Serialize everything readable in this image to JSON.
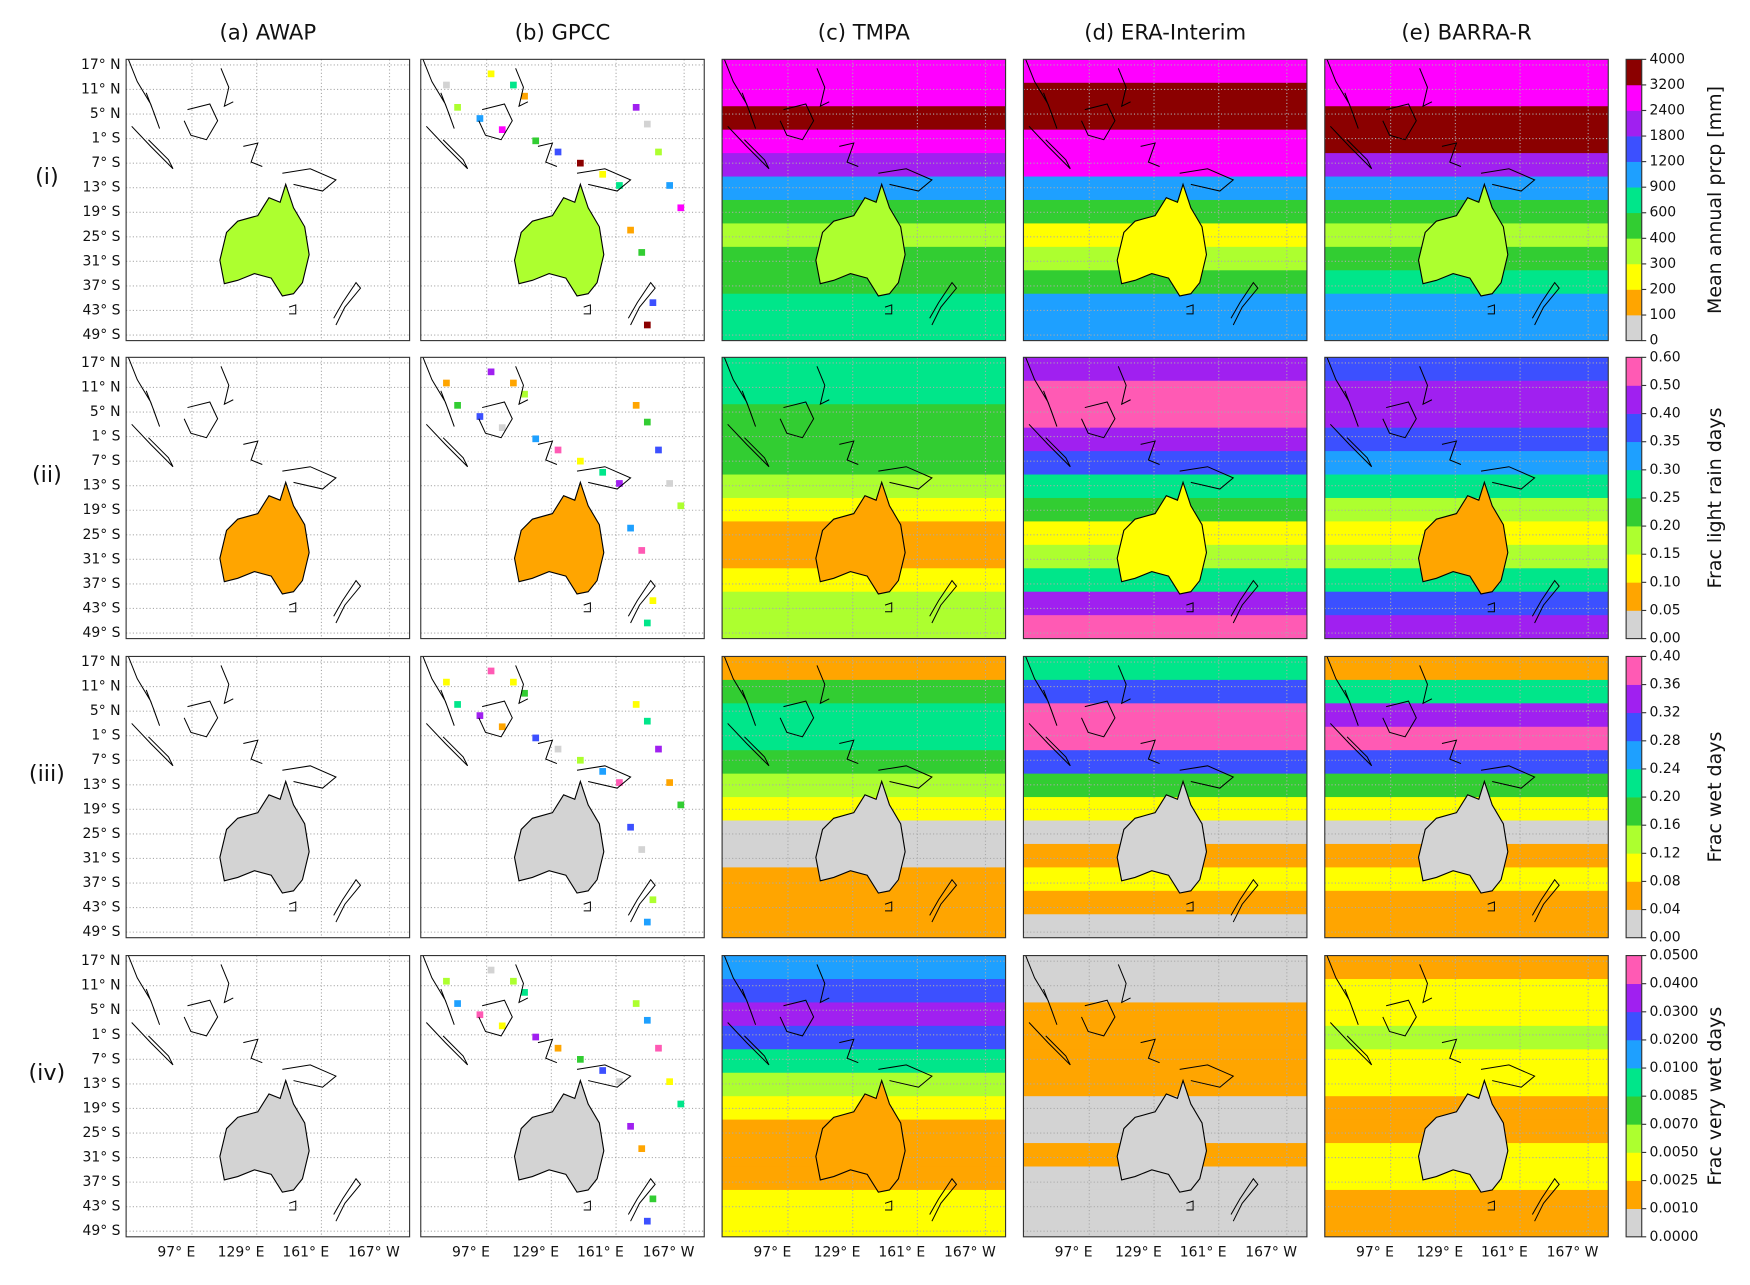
{
  "columns": [
    "(a) AWAP",
    "(b) GPCC",
    "(c) TMPA",
    "(d) ERA-Interim",
    "(e) BARRA-R"
  ],
  "rows": [
    "(i)",
    "(ii)",
    "(iii)",
    "(iv)"
  ],
  "lat_labels": [
    "17° N",
    "11° N",
    "5° N",
    "1° S",
    "7° S",
    "13° S",
    "19° S",
    "25° S",
    "31° S",
    "37° S",
    "43° S",
    "49° S"
  ],
  "lon_labels": [
    "97° E",
    "129° E",
    "161° E",
    "167° W"
  ],
  "colorbars": [
    {
      "label": "Mean annual prcp [mm]",
      "ticks": [
        0,
        100,
        200,
        300,
        400,
        600,
        900,
        1200,
        1800,
        2400,
        3200,
        4000
      ],
      "colors": [
        "#d3d3d3",
        "#ffa500",
        "#ffff00",
        "#adff2f",
        "#32cd32",
        "#00e68a",
        "#1ea0ff",
        "#3c50ff",
        "#a020f0",
        "#ff00ff",
        "#8b0000"
      ]
    },
    {
      "label": "Frac light rain days",
      "ticks": [
        {
          "value": 0,
          "label": "0.00"
        },
        0.05,
        {
          "value": 0.1,
          "label": "0.10"
        },
        0.15,
        {
          "value": 0.2,
          "label": "0.20"
        },
        0.25,
        {
          "value": 0.3,
          "label": "0.30"
        },
        0.35,
        {
          "value": 0.4,
          "label": "0.40"
        },
        {
          "value": 0.5,
          "label": "0.50"
        },
        {
          "value": 0.6,
          "label": "0.60"
        }
      ],
      "colors": [
        "#d3d3d3",
        "#ffa500",
        "#ffff00",
        "#adff2f",
        "#32cd32",
        "#00e68a",
        "#1ea0ff",
        "#3c50ff",
        "#a020f0",
        "#ff5ab4"
      ]
    },
    {
      "label": "Frac wet days",
      "ticks": [
        {
          "value": 0,
          "label": "0.00"
        },
        0.04,
        0.08,
        0.12,
        0.16,
        {
          "value": 0.2,
          "label": "0.20"
        },
        0.24,
        0.28,
        0.32,
        0.36,
        {
          "value": 0.4,
          "label": "0.40"
        }
      ],
      "colors": [
        "#d3d3d3",
        "#ffa500",
        "#ffff00",
        "#adff2f",
        "#32cd32",
        "#00e68a",
        "#1ea0ff",
        "#3c50ff",
        "#a020f0",
        "#ff5ab4"
      ]
    },
    {
      "label": "Frac very wet days",
      "ticks": [
        {
          "value": 0,
          "label": "0.0000"
        },
        {
          "value": 0.001,
          "label": "0.0010"
        },
        {
          "value": 0.0025,
          "label": "0.0025"
        },
        {
          "value": 0.005,
          "label": "0.0050"
        },
        {
          "value": 0.007,
          "label": "0.0070"
        },
        {
          "value": 0.0085,
          "label": "0.0085"
        },
        {
          "value": 0.01,
          "label": "0.0100"
        },
        {
          "value": 0.02,
          "label": "0.0200"
        },
        {
          "value": 0.03,
          "label": "0.0300"
        },
        {
          "value": 0.04,
          "label": "0.0400"
        },
        {
          "value": 0.05,
          "label": "0.0500"
        }
      ],
      "colors": [
        "#d3d3d3",
        "#ffa500",
        "#ffff00",
        "#adff2f",
        "#32cd32",
        "#00e68a",
        "#1ea0ff",
        "#3c50ff",
        "#a020f0",
        "#ff5ab4"
      ]
    }
  ]
}
